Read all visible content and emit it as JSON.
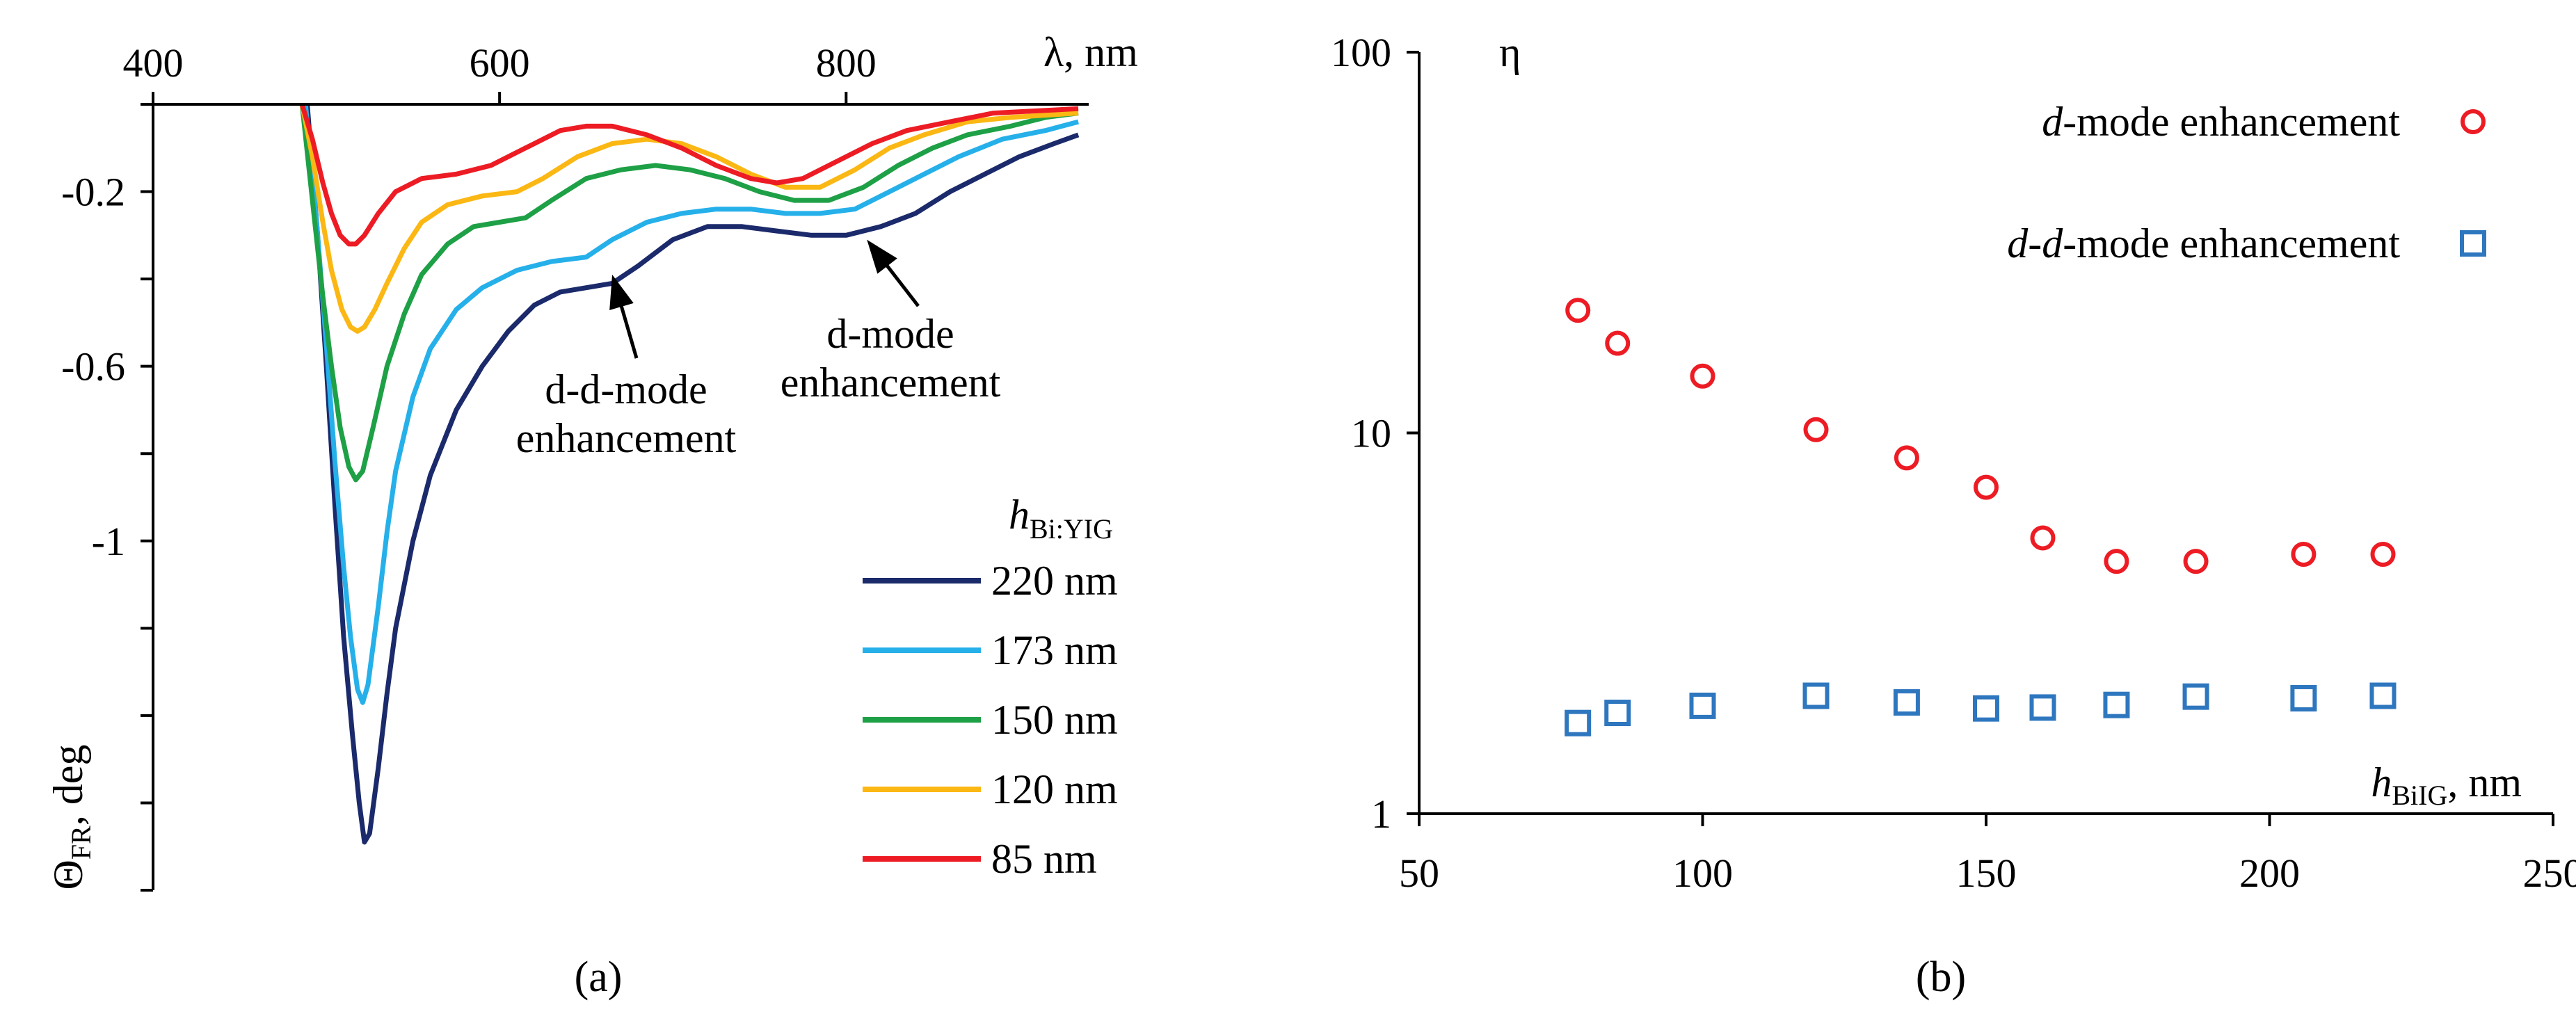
{
  "chart_data": [
    {
      "type": "line",
      "panel_label": "a",
      "xaxis": {
        "symbol": "λ",
        "unit": ", nm",
        "range": [
          400,
          940
        ],
        "ticks": [
          400,
          600,
          800
        ],
        "tick_labels": [
          "400",
          "600",
          "800"
        ],
        "position": "top"
      },
      "yaxis": {
        "symbol": "Θ",
        "subscript": "FR",
        "unit": ", deg",
        "range": [
          -1.8,
          0
        ],
        "ticks": [
          0,
          -0.2,
          -0.4,
          -0.6,
          -0.8,
          -1,
          -1.2,
          -1.4,
          -1.6,
          -1.8
        ],
        "tick_labels": [
          "",
          "-0.2",
          "",
          "-0.6",
          "",
          "-1",
          "",
          "",
          "",
          ""
        ]
      },
      "legend": {
        "title_symbol": "h",
        "title_subscript": "Bi:YIG",
        "position": "bottom-right"
      },
      "series": [
        {
          "name": "220 nm",
          "color": "#1b2a6b",
          "points": [
            [
              489,
              0
            ],
            [
              495,
              -0.3
            ],
            [
              500,
              -0.6
            ],
            [
              505,
              -0.92
            ],
            [
              510,
              -1.22
            ],
            [
              515,
              -1.44
            ],
            [
              519,
              -1.6
            ],
            [
              522,
              -1.69
            ],
            [
              525,
              -1.67
            ],
            [
              530,
              -1.52
            ],
            [
              535,
              -1.35
            ],
            [
              540,
              -1.2
            ],
            [
              550,
              -1.0
            ],
            [
              560,
              -0.85
            ],
            [
              575,
              -0.7
            ],
            [
              590,
              -0.6
            ],
            [
              605,
              -0.52
            ],
            [
              620,
              -0.46
            ],
            [
              635,
              -0.43
            ],
            [
              650,
              -0.42
            ],
            [
              665,
              -0.41
            ],
            [
              680,
              -0.37
            ],
            [
              700,
              -0.31
            ],
            [
              720,
              -0.28
            ],
            [
              740,
              -0.28
            ],
            [
              760,
              -0.29
            ],
            [
              780,
              -0.3
            ],
            [
              800,
              -0.3
            ],
            [
              820,
              -0.28
            ],
            [
              840,
              -0.25
            ],
            [
              860,
              -0.2
            ],
            [
              880,
              -0.16
            ],
            [
              900,
              -0.12
            ],
            [
              920,
              -0.09
            ],
            [
              934,
              -0.07
            ]
          ]
        },
        {
          "name": "173 nm",
          "color": "#26b0ea",
          "points": [
            [
              488,
              0
            ],
            [
              494,
              -0.25
            ],
            [
              500,
              -0.55
            ],
            [
              505,
              -0.82
            ],
            [
              510,
              -1.06
            ],
            [
              514,
              -1.22
            ],
            [
              518,
              -1.34
            ],
            [
              521,
              -1.37
            ],
            [
              524,
              -1.33
            ],
            [
              530,
              -1.15
            ],
            [
              535,
              -0.98
            ],
            [
              540,
              -0.84
            ],
            [
              550,
              -0.67
            ],
            [
              560,
              -0.56
            ],
            [
              575,
              -0.47
            ],
            [
              590,
              -0.42
            ],
            [
              610,
              -0.38
            ],
            [
              630,
              -0.36
            ],
            [
              650,
              -0.35
            ],
            [
              665,
              -0.31
            ],
            [
              685,
              -0.27
            ],
            [
              705,
              -0.25
            ],
            [
              725,
              -0.24
            ],
            [
              745,
              -0.24
            ],
            [
              765,
              -0.25
            ],
            [
              785,
              -0.25
            ],
            [
              805,
              -0.24
            ],
            [
              825,
              -0.2
            ],
            [
              845,
              -0.16
            ],
            [
              865,
              -0.12
            ],
            [
              890,
              -0.08
            ],
            [
              915,
              -0.06
            ],
            [
              934,
              -0.04
            ]
          ]
        },
        {
          "name": "150 nm",
          "color": "#1ea046",
          "points": [
            [
              486,
              0
            ],
            [
              492,
              -0.22
            ],
            [
              498,
              -0.44
            ],
            [
              503,
              -0.6
            ],
            [
              508,
              -0.74
            ],
            [
              513,
              -0.83
            ],
            [
              517,
              -0.86
            ],
            [
              521,
              -0.84
            ],
            [
              527,
              -0.74
            ],
            [
              535,
              -0.6
            ],
            [
              545,
              -0.48
            ],
            [
              555,
              -0.39
            ],
            [
              570,
              -0.32
            ],
            [
              585,
              -0.28
            ],
            [
              600,
              -0.27
            ],
            [
              615,
              -0.26
            ],
            [
              630,
              -0.22
            ],
            [
              650,
              -0.17
            ],
            [
              670,
              -0.15
            ],
            [
              690,
              -0.14
            ],
            [
              710,
              -0.15
            ],
            [
              730,
              -0.17
            ],
            [
              750,
              -0.2
            ],
            [
              770,
              -0.22
            ],
            [
              790,
              -0.22
            ],
            [
              810,
              -0.19
            ],
            [
              830,
              -0.14
            ],
            [
              850,
              -0.1
            ],
            [
              870,
              -0.07
            ],
            [
              895,
              -0.05
            ],
            [
              915,
              -0.03
            ],
            [
              934,
              -0.02
            ]
          ]
        },
        {
          "name": "120 nm",
          "color": "#fbb713",
          "points": [
            [
              486,
              0
            ],
            [
              492,
              -0.12
            ],
            [
              498,
              -0.27
            ],
            [
              503,
              -0.38
            ],
            [
              509,
              -0.47
            ],
            [
              514,
              -0.51
            ],
            [
              518,
              -0.52
            ],
            [
              522,
              -0.51
            ],
            [
              528,
              -0.47
            ],
            [
              535,
              -0.41
            ],
            [
              545,
              -0.33
            ],
            [
              555,
              -0.27
            ],
            [
              570,
              -0.23
            ],
            [
              590,
              -0.21
            ],
            [
              610,
              -0.2
            ],
            [
              625,
              -0.17
            ],
            [
              645,
              -0.12
            ],
            [
              665,
              -0.09
            ],
            [
              685,
              -0.08
            ],
            [
              705,
              -0.09
            ],
            [
              725,
              -0.12
            ],
            [
              745,
              -0.16
            ],
            [
              765,
              -0.19
            ],
            [
              785,
              -0.19
            ],
            [
              805,
              -0.15
            ],
            [
              825,
              -0.1
            ],
            [
              845,
              -0.07
            ],
            [
              870,
              -0.04
            ],
            [
              895,
              -0.03
            ],
            [
              934,
              -0.02
            ]
          ]
        },
        {
          "name": "85 nm",
          "color": "#ed1c24",
          "points": [
            [
              486,
              0
            ],
            [
              492,
              -0.08
            ],
            [
              498,
              -0.18
            ],
            [
              503,
              -0.25
            ],
            [
              508,
              -0.3
            ],
            [
              513,
              -0.32
            ],
            [
              517,
              -0.32
            ],
            [
              522,
              -0.3
            ],
            [
              530,
              -0.25
            ],
            [
              540,
              -0.2
            ],
            [
              555,
              -0.17
            ],
            [
              575,
              -0.16
            ],
            [
              595,
              -0.14
            ],
            [
              615,
              -0.1
            ],
            [
              635,
              -0.06
            ],
            [
              650,
              -0.05
            ],
            [
              665,
              -0.05
            ],
            [
              685,
              -0.07
            ],
            [
              705,
              -0.1
            ],
            [
              725,
              -0.14
            ],
            [
              745,
              -0.17
            ],
            [
              760,
              -0.18
            ],
            [
              775,
              -0.17
            ],
            [
              795,
              -0.13
            ],
            [
              815,
              -0.09
            ],
            [
              835,
              -0.06
            ],
            [
              860,
              -0.04
            ],
            [
              885,
              -0.02
            ],
            [
              934,
              -0.01
            ]
          ]
        }
      ],
      "annotations": [
        {
          "lines": [
            "d-d-mode",
            "enhancement"
          ],
          "arrow_to": [
            665,
            -0.39
          ]
        },
        {
          "lines": [
            "d-mode",
            "enhancement"
          ],
          "arrow_to": [
            812,
            -0.31
          ]
        }
      ]
    },
    {
      "type": "scatter",
      "panel_label": "b",
      "xaxis": {
        "symbol": "h",
        "subscript": "BiIG",
        "unit": ", nm",
        "range": [
          50,
          250
        ],
        "ticks": [
          50,
          100,
          150,
          200,
          250
        ],
        "tick_labels": [
          "50",
          "100",
          "150",
          "200",
          "250"
        ]
      },
      "yaxis": {
        "symbol": "η",
        "scale": "log",
        "range": [
          1,
          100
        ],
        "ticks": [
          1,
          10,
          100
        ],
        "tick_labels": [
          "1",
          "10",
          "100"
        ]
      },
      "legend": {
        "position": "top-right"
      },
      "series": [
        {
          "name": "d-mode enhancement",
          "marker": "circle",
          "color": "#ed1c24",
          "x": [
            78,
            85,
            100,
            120,
            136,
            150,
            160,
            173,
            187,
            206,
            220
          ],
          "y": [
            21,
            17.2,
            14.1,
            10.2,
            8.6,
            7.2,
            5.3,
            4.6,
            4.6,
            4.8,
            4.8
          ]
        },
        {
          "name": "d-d-mode enhancement",
          "marker": "square",
          "color": "#2e77bf",
          "x": [
            78,
            85,
            100,
            120,
            136,
            150,
            160,
            173,
            187,
            206,
            220
          ],
          "y": [
            1.73,
            1.84,
            1.92,
            2.04,
            1.96,
            1.89,
            1.9,
            1.93,
            2.03,
            2.01,
            2.04
          ]
        }
      ]
    }
  ]
}
